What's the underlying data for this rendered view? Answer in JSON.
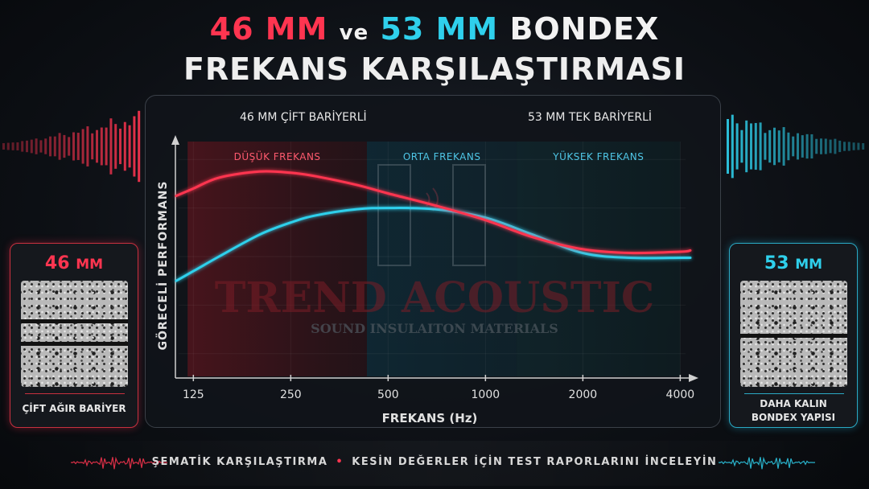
{
  "header": {
    "title_46": "46 MM",
    "title_ve": "ve",
    "title_53": "53 MM",
    "title_bondex": "BONDEX",
    "title_line2": "FREKANS KARŞILAŞTIRMASI"
  },
  "colors": {
    "red": "#ff3550",
    "cyan": "#2fd0ec",
    "low_zone": "#3a1419",
    "mid_zone": "#0f2630",
    "high_zone": "#112a30"
  },
  "chart_data": {
    "type": "line",
    "title": "",
    "xlabel": "FREKANS (Hz)",
    "ylabel": "GÖRECELİ PERFORMANS",
    "x_scale": "log",
    "x_ticks": [
      125,
      250,
      500,
      1000,
      2000,
      4000
    ],
    "ylim": [
      0,
      10
    ],
    "grid": true,
    "legend_position": "top",
    "zones": [
      {
        "label": "DÜŞÜK FREKANS",
        "from": 120,
        "to": 430
      },
      {
        "label": "ORTA FREKANS",
        "from": 430,
        "to": 1250
      },
      {
        "label": "YÜKSEK FREKANS",
        "from": 1250,
        "to": 4000
      }
    ],
    "series": [
      {
        "name": "46 MM ÇİFT BARİYERLİ",
        "color": "#ff3550",
        "x": [
          110,
          125,
          150,
          200,
          250,
          300,
          400,
          500,
          700,
          1000,
          1400,
          2000,
          2800,
          4000,
          4300
        ],
        "y": [
          7.5,
          7.8,
          8.25,
          8.5,
          8.45,
          8.3,
          7.95,
          7.6,
          7.1,
          6.5,
          5.8,
          5.3,
          5.15,
          5.2,
          5.25
        ]
      },
      {
        "name": "53 MM TEK BARİYERLİ",
        "color": "#2fd0ec",
        "x": [
          110,
          125,
          150,
          200,
          250,
          300,
          400,
          500,
          700,
          1000,
          1400,
          2000,
          2800,
          4000,
          4300
        ],
        "y": [
          4.0,
          4.4,
          5.0,
          5.9,
          6.4,
          6.7,
          6.95,
          7.0,
          6.95,
          6.6,
          5.9,
          5.15,
          4.95,
          4.95,
          4.95
        ]
      }
    ]
  },
  "watermark": {
    "brand": "TREND ACOUSTIC",
    "tagline": "SOUND INSULAITON MATERIALS"
  },
  "left_card": {
    "value": "46",
    "unit": "MM",
    "label": "ÇİFT AĞIR BARİYER"
  },
  "right_card": {
    "value": "53",
    "unit": "MM",
    "label_line1": "DAHA KALIN",
    "label_line2": "BONDEX YAPISI"
  },
  "footer": {
    "part1": "ŞEMATİK KARŞILAŞTIRMA",
    "separator": "•",
    "part2": "KESİN DEĞERLER İÇİN TEST RAPORLARINI İNCELEYİN"
  }
}
